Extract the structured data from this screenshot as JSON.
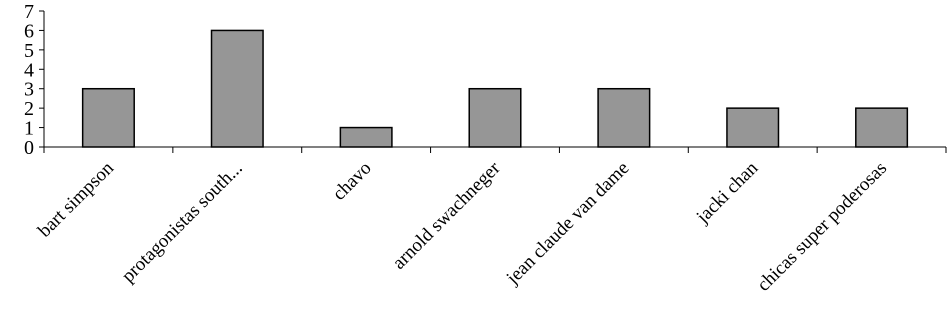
{
  "chart_data": {
    "type": "bar",
    "categories": [
      "bart simpson",
      "protagonistas south...",
      "chavo",
      "arnold swachneger",
      "jean claude van dame",
      "jacki chan",
      "chicas super poderosas"
    ],
    "values": [
      3,
      6,
      1,
      3,
      3,
      2,
      2
    ],
    "ylim": [
      0,
      7
    ],
    "yticks": [
      0,
      1,
      2,
      3,
      4,
      5,
      6,
      7
    ],
    "grid": false,
    "legend": "none",
    "colors": {
      "bar": "#969696",
      "outline": "#000000"
    }
  }
}
